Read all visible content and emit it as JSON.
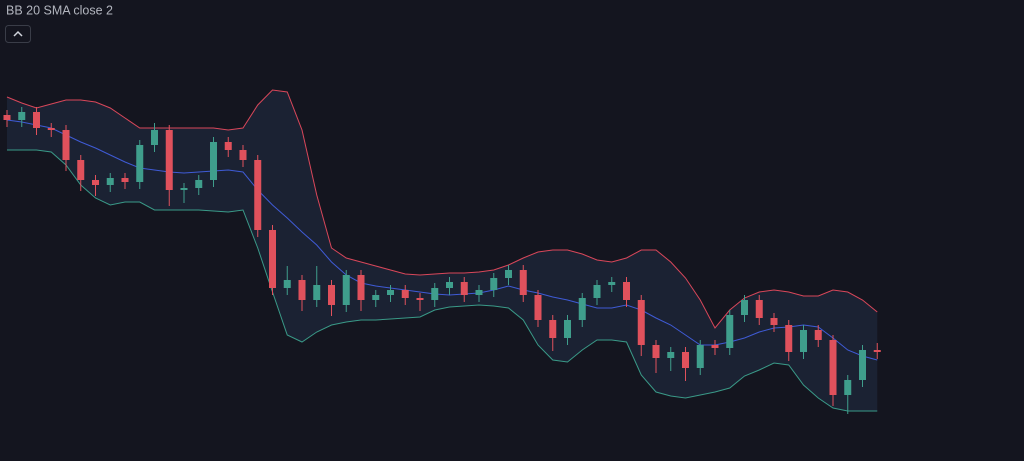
{
  "chart_data": {
    "type": "candlestick",
    "title": "BB 20 SMA close 2",
    "open": [
      346,
      341,
      349,
      333,
      331,
      301,
      281,
      276,
      283,
      279,
      316,
      331,
      271,
      273,
      281,
      319,
      311,
      301,
      231,
      173,
      181,
      161,
      176,
      156,
      186,
      161,
      166,
      171,
      163,
      161,
      173,
      179,
      166,
      171,
      183,
      191,
      166,
      141,
      123,
      141,
      163,
      176,
      179,
      161,
      116,
      103,
      109,
      93,
      116,
      113,
      146,
      161,
      143,
      136,
      109,
      131,
      121,
      66,
      81,
      111
    ],
    "high": [
      351,
      354,
      354,
      338,
      336,
      306,
      286,
      288,
      288,
      321,
      338,
      336,
      278,
      286,
      324,
      324,
      316,
      306,
      236,
      195,
      186,
      195,
      181,
      191,
      191,
      171,
      176,
      176,
      168,
      178,
      184,
      184,
      176,
      188,
      196,
      196,
      171,
      146,
      146,
      168,
      181,
      184,
      184,
      166,
      121,
      114,
      114,
      121,
      121,
      151,
      166,
      166,
      148,
      141,
      136,
      136,
      126,
      86,
      116,
      118
    ],
    "low": [
      334,
      334,
      326,
      324,
      290,
      270,
      265,
      269,
      272,
      272,
      309,
      255,
      258,
      266,
      274,
      304,
      294,
      224,
      166,
      166,
      150,
      154,
      145,
      149,
      150,
      154,
      159,
      156,
      150,
      154,
      166,
      159,
      159,
      164,
      176,
      159,
      134,
      110,
      116,
      134,
      156,
      169,
      154,
      105,
      88,
      90,
      80,
      86,
      106,
      106,
      139,
      136,
      129,
      100,
      102,
      114,
      55,
      47,
      74,
      102
    ],
    "close": [
      341,
      349,
      333,
      331,
      301,
      281,
      276,
      283,
      279,
      316,
      331,
      271,
      273,
      281,
      319,
      311,
      301,
      231,
      173,
      181,
      161,
      176,
      156,
      186,
      161,
      166,
      171,
      163,
      161,
      173,
      179,
      166,
      171,
      183,
      191,
      166,
      141,
      123,
      141,
      163,
      176,
      179,
      161,
      116,
      103,
      109,
      93,
      116,
      113,
      146,
      161,
      143,
      136,
      109,
      131,
      121,
      66,
      81,
      111,
      109
    ],
    "upper": [
      364,
      358,
      353,
      357,
      361,
      361,
      359,
      353,
      343,
      333,
      333,
      333,
      333,
      333,
      333,
      331,
      333,
      356,
      371,
      369,
      331,
      266,
      213,
      203,
      199,
      195,
      191,
      187,
      186,
      187,
      188,
      188,
      189,
      191,
      196,
      203,
      209,
      211,
      211,
      207,
      201,
      199,
      203,
      211,
      211,
      199,
      183,
      161,
      133,
      151,
      163,
      169,
      171,
      169,
      165,
      165,
      171,
      169,
      161,
      149
    ],
    "middle": [
      341,
      339,
      336,
      333,
      326,
      319,
      313,
      306,
      299,
      293,
      291,
      289,
      288,
      289,
      290,
      291,
      289,
      271,
      256,
      243,
      229,
      216,
      199,
      186,
      178,
      175,
      173,
      171,
      169,
      167,
      166,
      167,
      168,
      171,
      175,
      171,
      168,
      164,
      161,
      157,
      153,
      153,
      156,
      151,
      143,
      136,
      126,
      116,
      116,
      119,
      123,
      129,
      133,
      134,
      136,
      134,
      123,
      111,
      105,
      101
    ],
    "lower": [
      311,
      311,
      311,
      309,
      296,
      276,
      263,
      256,
      259,
      259,
      251,
      251,
      251,
      251,
      250,
      249,
      251,
      213,
      169,
      126,
      119,
      129,
      136,
      139,
      141,
      141,
      142,
      143,
      144,
      151,
      154,
      155,
      156,
      155,
      153,
      141,
      116,
      101,
      99,
      111,
      121,
      121,
      119,
      86,
      69,
      65,
      63,
      66,
      69,
      73,
      85,
      91,
      98,
      96,
      76,
      63,
      53,
      50,
      50,
      50
    ],
    "ylim": [
      0,
      461
    ],
    "colors": {
      "up": "#3f9e8c",
      "down": "#e0515c",
      "upper": "#d9475a",
      "middle": "#3f5bd6",
      "lower": "#3a9a88",
      "fill": "rgba(45,62,92,0.32)"
    }
  }
}
